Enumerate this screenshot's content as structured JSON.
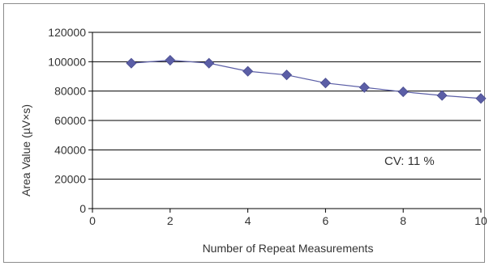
{
  "chart_data": {
    "type": "line",
    "xlabel": "Number of Repeat Measurements",
    "ylabel": "Area Value (µV×s)",
    "xlim": [
      0,
      10
    ],
    "ylim": [
      0,
      120000
    ],
    "x_ticks": [
      0,
      2,
      4,
      6,
      8,
      10
    ],
    "y_ticks": [
      0,
      20000,
      40000,
      60000,
      80000,
      100000,
      120000
    ],
    "grid": "horizontal",
    "legend": "none",
    "annotation": "CV: 11 %",
    "series": [
      {
        "marker": "diamond",
        "color": "#5b5ea6",
        "x": [
          1,
          2,
          3,
          4,
          5,
          6,
          7,
          8,
          9,
          10
        ],
        "y": [
          99000,
          101000,
          99000,
          93500,
          91000,
          85500,
          82500,
          79500,
          77000,
          75000
        ]
      }
    ]
  }
}
